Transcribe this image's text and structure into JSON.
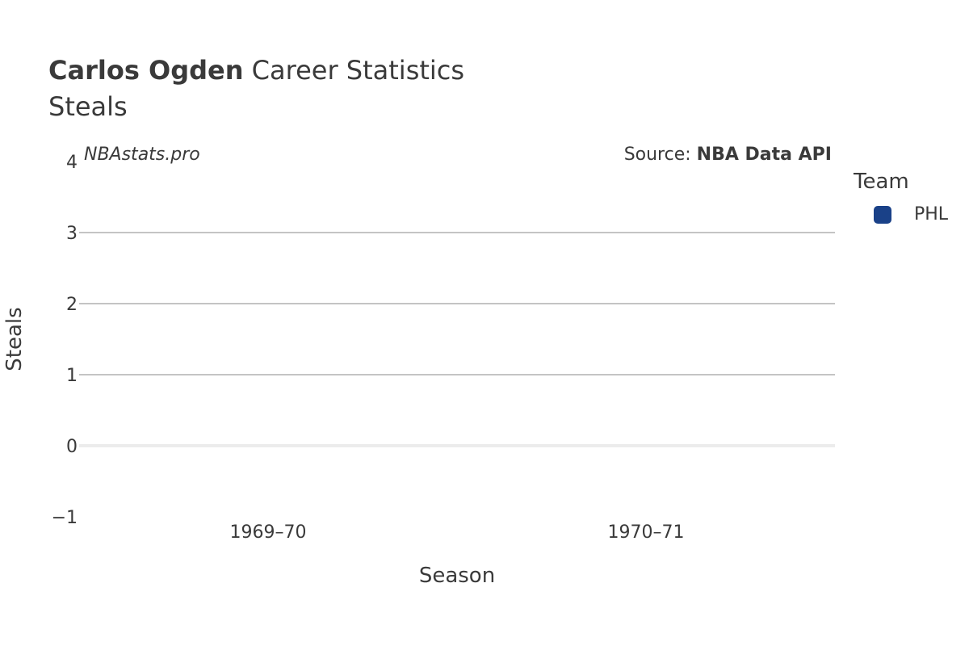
{
  "header": {
    "player_name": "Carlos Ogden",
    "title_suffix": " Career Statistics",
    "subtitle": "Steals"
  },
  "watermark": "NBAstats.pro",
  "source": {
    "prefix": "Source: ",
    "name": "NBA Data API"
  },
  "legend": {
    "title": "Team",
    "items": [
      {
        "label": "PHL",
        "color": "#1a4188"
      }
    ]
  },
  "chart_data": {
    "type": "bar",
    "title": "Carlos Ogden Career Statistics",
    "subtitle": "Steals",
    "xlabel": "Season",
    "ylabel": "Steals",
    "categories": [
      "1969–70",
      "1970–71"
    ],
    "series": [
      {
        "name": "PHL",
        "values": [
          null,
          null
        ],
        "color": "#1a4188"
      }
    ],
    "ylim": [
      -1,
      4
    ],
    "yticks": [
      -1,
      0,
      1,
      2,
      3,
      4
    ],
    "ytick_labels": [
      "−1",
      "0",
      "1",
      "2",
      "3",
      "4"
    ],
    "grid": true,
    "legend_position": "right"
  }
}
